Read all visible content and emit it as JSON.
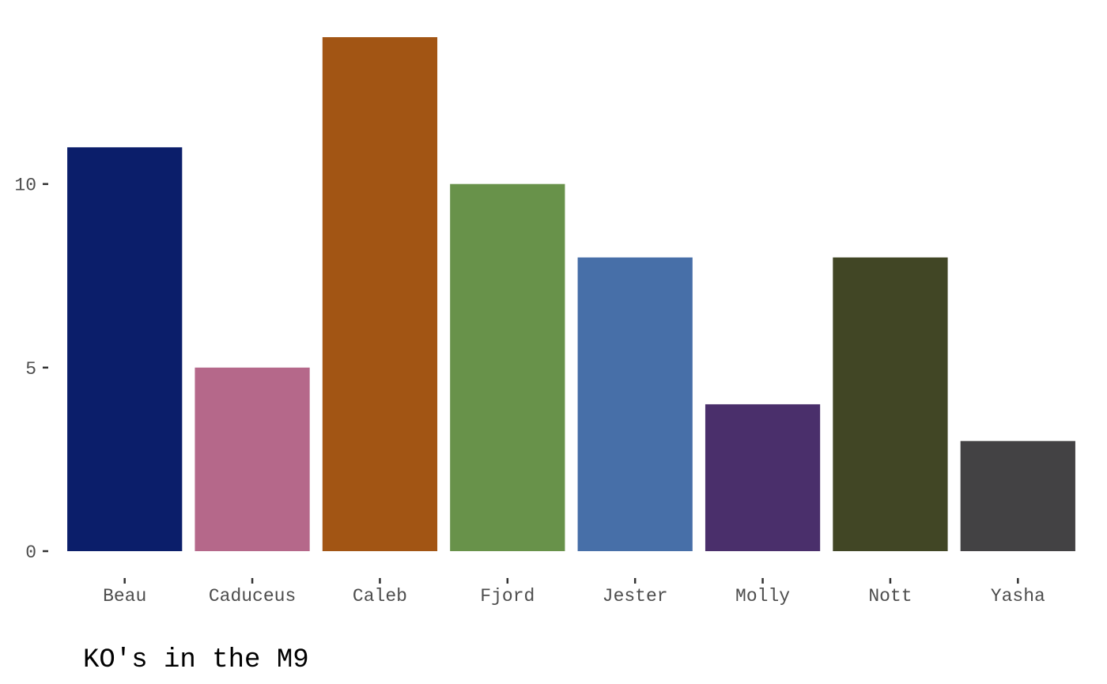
{
  "chart_data": {
    "type": "bar",
    "title": "KO's in the M9",
    "xlabel": "",
    "ylabel": "",
    "categories": [
      "Beau",
      "Caduceus",
      "Caleb",
      "Fjord",
      "Jester",
      "Molly",
      "Nott",
      "Yasha"
    ],
    "values": [
      11,
      5,
      14,
      10,
      8,
      4,
      8,
      3
    ],
    "colors": [
      "#0b1e6a",
      "#b5688a",
      "#a25514",
      "#68924a",
      "#476fa8",
      "#4a2f6b",
      "#414625",
      "#434244"
    ],
    "ylim": [
      0,
      14
    ],
    "yticks": [
      0,
      5,
      10
    ],
    "grid": false,
    "legend": "none"
  }
}
